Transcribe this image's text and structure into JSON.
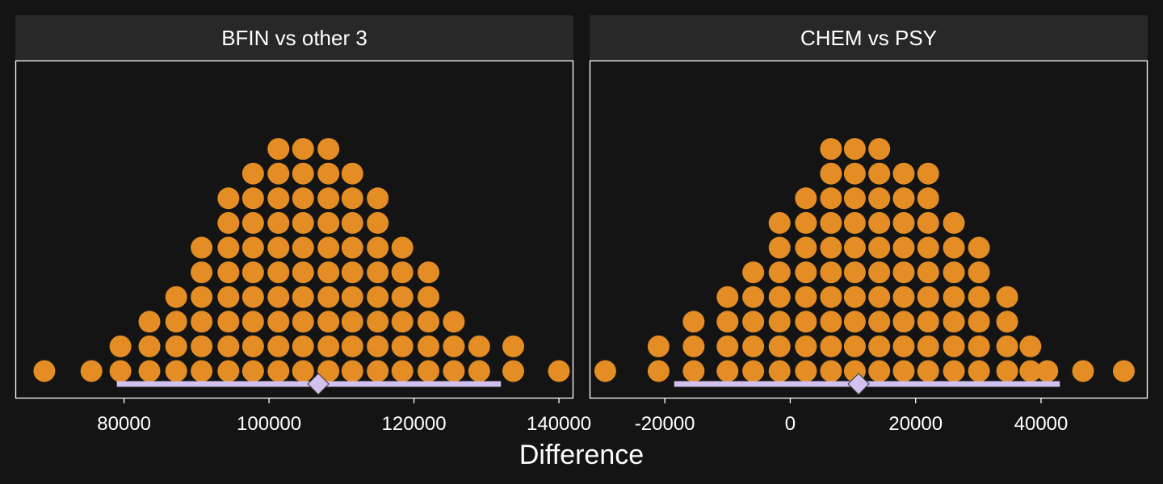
{
  "chart_data": {
    "type": "dotplot",
    "xlabel": "Difference",
    "colors": {
      "background": "#141414",
      "strip": "#282828",
      "dots": "#e38d24",
      "interval": "#d2c0ee",
      "frame": "#ffffff",
      "text": "#ffffff"
    },
    "panels": [
      {
        "title": "BFIN vs other 3",
        "xlim": [
          65000,
          142000
        ],
        "ticks": [
          80000,
          100000,
          120000,
          140000
        ],
        "tick_labels": [
          "80000",
          "100000",
          "120000",
          "140000"
        ],
        "stacks": [
          {
            "x": 69000,
            "count": 1
          },
          {
            "x": 75500,
            "count": 1
          },
          {
            "x": 79500,
            "count": 2
          },
          {
            "x": 83500,
            "count": 3
          },
          {
            "x": 87200,
            "count": 4
          },
          {
            "x": 90700,
            "count": 6
          },
          {
            "x": 94400,
            "count": 8
          },
          {
            "x": 97800,
            "count": 9
          },
          {
            "x": 101300,
            "count": 10
          },
          {
            "x": 104700,
            "count": 10
          },
          {
            "x": 108200,
            "count": 10
          },
          {
            "x": 111500,
            "count": 9
          },
          {
            "x": 115000,
            "count": 8
          },
          {
            "x": 118400,
            "count": 6
          },
          {
            "x": 122000,
            "count": 5
          },
          {
            "x": 125500,
            "count": 3
          },
          {
            "x": 129000,
            "count": 2
          },
          {
            "x": 133700,
            "count": 2
          },
          {
            "x": 140000,
            "count": 1
          }
        ],
        "interval": {
          "low": 79000,
          "high": 132000
        },
        "point_estimate": 106800
      },
      {
        "title": "CHEM vs PSY",
        "xlim": [
          -32000,
          57000
        ],
        "ticks": [
          -20000,
          0,
          20000,
          40000
        ],
        "tick_labels": [
          "-20000",
          "0",
          "20000",
          "40000"
        ],
        "stacks": [
          {
            "x": -29500,
            "count": 1
          },
          {
            "x": -21000,
            "count": 2
          },
          {
            "x": -15400,
            "count": 3
          },
          {
            "x": -10000,
            "count": 4
          },
          {
            "x": -5900,
            "count": 5
          },
          {
            "x": -1700,
            "count": 7
          },
          {
            "x": 2500,
            "count": 8
          },
          {
            "x": 6500,
            "count": 10
          },
          {
            "x": 10300,
            "count": 10
          },
          {
            "x": 14200,
            "count": 10
          },
          {
            "x": 18100,
            "count": 9
          },
          {
            "x": 22000,
            "count": 9
          },
          {
            "x": 26100,
            "count": 7
          },
          {
            "x": 30100,
            "count": 6
          },
          {
            "x": 34600,
            "count": 4
          },
          {
            "x": 38300,
            "count": 2
          },
          {
            "x": 41000,
            "count": 1
          },
          {
            "x": 46700,
            "count": 1
          },
          {
            "x": 53200,
            "count": 1
          }
        ],
        "interval": {
          "low": -18500,
          "high": 43000
        },
        "point_estimate": 10900
      }
    ]
  }
}
